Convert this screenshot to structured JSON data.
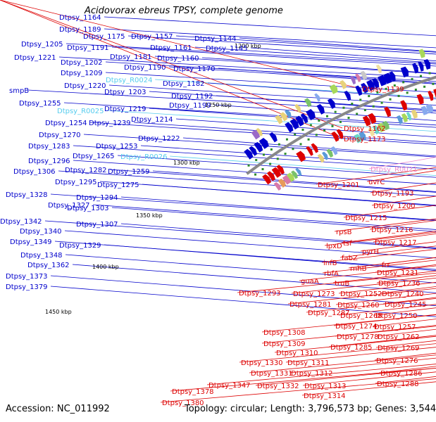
{
  "title": "Acidovorax ebreus TPSY, complete genome",
  "footer": {
    "accession_label": "Accession:",
    "accession": "NC_011992",
    "topology_label": "Topology:",
    "topology": "circular",
    "length_label": "Length:",
    "length": "3,796,573 bp",
    "genes_label": "Genes:",
    "genes": "3,544"
  },
  "colors": {
    "forward_strand": "#0000cc",
    "reverse_strand": "#dd0000",
    "rna_forward": "#55ccee",
    "rna_reverse": "#ee88cc",
    "backbone": "#888888",
    "tick_mark": "#2a8a2a"
  },
  "scale_ticks": [
    "1200 kbp",
    "1250 kbp",
    "1300 kbp",
    "1350 kbp",
    "1400 kbp",
    "1450 kbp"
  ],
  "left_labels": [
    {
      "text": "Dtpsy_1164",
      "type": "cds"
    },
    {
      "text": "Dtpsy_1189",
      "type": "cds"
    },
    {
      "text": "Dtpsy_1175",
      "type": "cds"
    },
    {
      "text": "Dtpsy_1157",
      "type": "cds"
    },
    {
      "text": "Dtpsy_1144",
      "type": "cds"
    },
    {
      "text": "Dtpsy_1205",
      "type": "cds"
    },
    {
      "text": "Dtpsy_1191",
      "type": "cds"
    },
    {
      "text": "Dtpsy_1161",
      "type": "cds"
    },
    {
      "text": "Dtpsy_1145",
      "type": "cds"
    },
    {
      "text": "Dtpsy_1221",
      "type": "cds"
    },
    {
      "text": "Dtpsy_1181",
      "type": "cds"
    },
    {
      "text": "Dtpsy_1160",
      "type": "cds"
    },
    {
      "text": "Dtpsy_1202",
      "type": "cds"
    },
    {
      "text": "Dtpsy_1190",
      "type": "cds"
    },
    {
      "text": "Dtpsy_1170",
      "type": "cds"
    },
    {
      "text": "Dtpsy_1209",
      "type": "cds"
    },
    {
      "text": "Dtpsy_R0024",
      "type": "rna"
    },
    {
      "text": "Dtpsy_1220",
      "type": "cds"
    },
    {
      "text": "Dtpsy_1182",
      "type": "cds"
    },
    {
      "text": "Dtpsy_1203",
      "type": "cds"
    },
    {
      "text": "Dtpsy_1192",
      "type": "cds"
    },
    {
      "text": "smpB",
      "type": "cds"
    },
    {
      "text": "Dtpsy_1199",
      "type": "cds"
    },
    {
      "text": "Dtpsy_1255",
      "type": "cds"
    },
    {
      "text": "Dtpsy_R0025",
      "type": "rna"
    },
    {
      "text": "Dtpsy_1219",
      "type": "cds"
    },
    {
      "text": "Dtpsy_1214",
      "type": "cds"
    },
    {
      "text": "Dtpsy_1254",
      "type": "cds"
    },
    {
      "text": "Dtpsy_1239",
      "type": "cds"
    },
    {
      "text": "Dtpsy_1270",
      "type": "cds"
    },
    {
      "text": "Dtpsy_1222",
      "type": "cds"
    },
    {
      "text": "Dtpsy_1283",
      "type": "cds"
    },
    {
      "text": "Dtpsy_1253",
      "type": "cds"
    },
    {
      "text": "Dtpsy_1265",
      "type": "cds"
    },
    {
      "text": "Dtpsy_R0026",
      "type": "rna"
    },
    {
      "text": "Dtpsy_1296",
      "type": "cds"
    },
    {
      "text": "Dtpsy_1306",
      "type": "cds"
    },
    {
      "text": "Dtpsy_1282",
      "type": "cds"
    },
    {
      "text": "Dtpsy_1259",
      "type": "cds"
    },
    {
      "text": "Dtpsy_1295",
      "type": "cds"
    },
    {
      "text": "Dtpsy_1275",
      "type": "cds"
    },
    {
      "text": "Dtpsy_1328",
      "type": "cds"
    },
    {
      "text": "Dtpsy_1294",
      "type": "cds"
    },
    {
      "text": "Dtpsy_1327",
      "type": "cds"
    },
    {
      "text": "Dtpsy_1303",
      "type": "cds"
    },
    {
      "text": "Dtpsy_1342",
      "type": "cds"
    },
    {
      "text": "Dtpsy_1307",
      "type": "cds"
    },
    {
      "text": "Dtpsy_1340",
      "type": "cds"
    },
    {
      "text": "Dtpsy_1349",
      "type": "cds"
    },
    {
      "text": "Dtpsy_1329",
      "type": "cds"
    },
    {
      "text": "Dtpsy_1348",
      "type": "cds"
    },
    {
      "text": "Dtpsy_1362",
      "type": "cds"
    },
    {
      "text": "Dtpsy_1373",
      "type": "cds"
    },
    {
      "text": "Dtpsy_1379",
      "type": "cds"
    }
  ],
  "right_labels": [
    {
      "text": "Dtpsy_1139",
      "type": "cds"
    },
    {
      "text": "Dtpsy_1162",
      "type": "cds"
    },
    {
      "text": "Dtpsy_1173",
      "type": "cds"
    },
    {
      "text": "Dtpsy_R0021",
      "type": "rna"
    },
    {
      "text": "uvrC",
      "type": "cds"
    },
    {
      "text": "Dtpsy_1201",
      "type": "cds"
    },
    {
      "text": "Dtpsy_1193",
      "type": "cds"
    },
    {
      "text": "Dtpsy_1200",
      "type": "cds"
    },
    {
      "text": "Dtpsy_1215",
      "type": "cds"
    },
    {
      "text": "Dtpsy_1216",
      "type": "cds"
    },
    {
      "text": "rpsB",
      "type": "cds"
    },
    {
      "text": "Dtpsy_1217",
      "type": "cds"
    },
    {
      "text": "tsf",
      "type": "cds"
    },
    {
      "text": "pyrH",
      "type": "cds"
    },
    {
      "text": "lpxD",
      "type": "cds"
    },
    {
      "text": "fabZ",
      "type": "cds"
    },
    {
      "text": "frr",
      "type": "cds"
    },
    {
      "text": "rnhB",
      "type": "cds"
    },
    {
      "text": "infB",
      "type": "cds"
    },
    {
      "text": "Dtpsy_1231",
      "type": "cds"
    },
    {
      "text": "rbfA",
      "type": "cds"
    },
    {
      "text": "Dtpsy_1236",
      "type": "cds"
    },
    {
      "text": "guaA",
      "type": "cds"
    },
    {
      "text": "truB",
      "type": "cds"
    },
    {
      "text": "Dtpsy_1240",
      "type": "cds"
    },
    {
      "text": "Dtpsy_1293",
      "type": "cds"
    },
    {
      "text": "Dtpsy_1273",
      "type": "cds"
    },
    {
      "text": "Dtpsy_1252",
      "type": "cds"
    },
    {
      "text": "Dtpsy_1245",
      "type": "cds"
    },
    {
      "text": "Dtpsy_1281",
      "type": "cds"
    },
    {
      "text": "Dtpsy_1260",
      "type": "cds"
    },
    {
      "text": "Dtpsy_1287",
      "type": "cds"
    },
    {
      "text": "Dtpsy_1268",
      "type": "cds"
    },
    {
      "text": "Dtpsy_1250",
      "type": "cds"
    },
    {
      "text": "Dtpsy_1274",
      "type": "cds"
    },
    {
      "text": "Dtpsy_1257",
      "type": "cds"
    },
    {
      "text": "Dtpsy_1278",
      "type": "cds"
    },
    {
      "text": "Dtpsy_1262",
      "type": "cds"
    },
    {
      "text": "Dtpsy_1308",
      "type": "cds"
    },
    {
      "text": "Dtpsy_1285",
      "type": "cds"
    },
    {
      "text": "Dtpsy_1269",
      "type": "cds"
    },
    {
      "text": "Dtpsy_1309",
      "type": "cds"
    },
    {
      "text": "Dtpsy_1310",
      "type": "cds"
    },
    {
      "text": "Dtpsy_1276",
      "type": "cds"
    },
    {
      "text": "Dtpsy_1330",
      "type": "cds"
    },
    {
      "text": "Dtpsy_1311",
      "type": "cds"
    },
    {
      "text": "Dtpsy_1331",
      "type": "cds"
    },
    {
      "text": "Dtpsy_1312",
      "type": "cds"
    },
    {
      "text": "Dtpsy_1286",
      "type": "cds"
    },
    {
      "text": "Dtpsy_1347",
      "type": "cds"
    },
    {
      "text": "Dtpsy_1332",
      "type": "cds"
    },
    {
      "text": "Dtpsy_1313",
      "type": "cds"
    },
    {
      "text": "Dtpsy_1288",
      "type": "cds"
    },
    {
      "text": "Dtpsy_1378",
      "type": "cds"
    },
    {
      "text": "Dtpsy_1314",
      "type": "cds"
    },
    {
      "text": "Dtpsy_1380",
      "type": "cds"
    }
  ]
}
